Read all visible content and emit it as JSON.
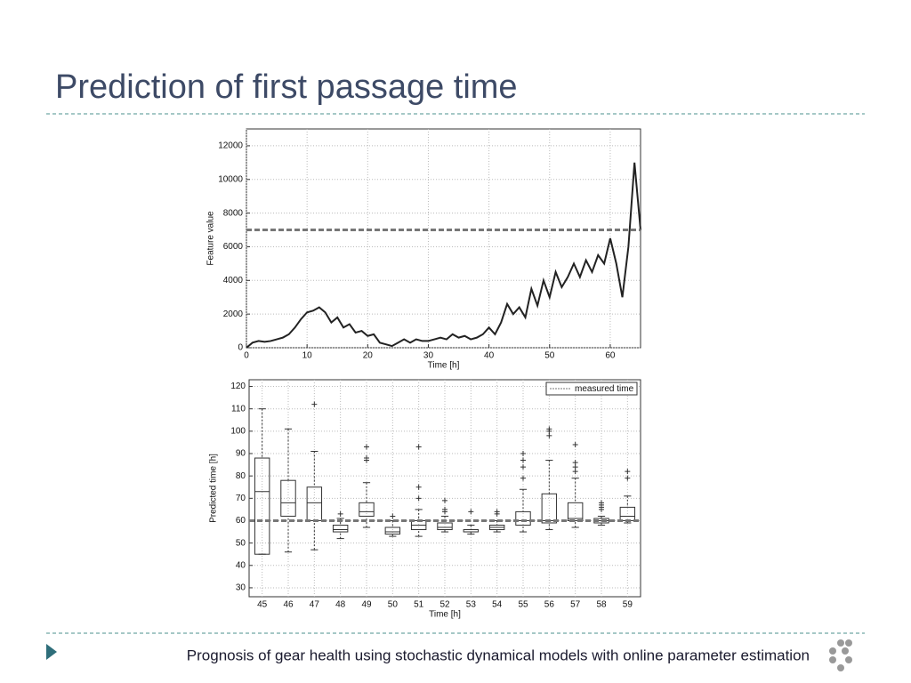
{
  "header": {
    "title": "Prediction of first passage time"
  },
  "footer": {
    "text": "Prognosis of gear health using stochastic dynamical models with online parameter estimation"
  },
  "chart_data": [
    {
      "type": "line",
      "xlabel": "Time [h]",
      "ylabel": "Feature value",
      "x": [
        0,
        1,
        2,
        3,
        4,
        5,
        6,
        7,
        8,
        9,
        10,
        11,
        12,
        13,
        14,
        15,
        16,
        17,
        18,
        19,
        20,
        21,
        22,
        23,
        24,
        25,
        26,
        27,
        28,
        29,
        30,
        31,
        32,
        33,
        34,
        35,
        36,
        37,
        38,
        39,
        40,
        41,
        42,
        43,
        44,
        45,
        46,
        47,
        48,
        49,
        50,
        51,
        52,
        53,
        54,
        55,
        56,
        57,
        58,
        59,
        60,
        61,
        62,
        63,
        64,
        65
      ],
      "series": [
        {
          "color": "#222222",
          "values": [
            0,
            300,
            400,
            350,
            400,
            500,
            600,
            800,
            1200,
            1700,
            2100,
            2200,
            2400,
            2100,
            1500,
            1800,
            1200,
            1400,
            900,
            1000,
            700,
            800,
            300,
            200,
            100,
            300,
            500,
            300,
            500,
            400,
            400,
            500,
            600,
            500,
            800,
            600,
            700,
            500,
            600,
            800,
            1200,
            800,
            1500,
            2600,
            2000,
            2400,
            1800,
            3500,
            2500,
            4000,
            3000,
            4500,
            3600,
            4200,
            5000,
            4200,
            5200,
            4500,
            5500,
            5000,
            6500,
            5000,
            3000,
            6000,
            11000,
            7000
          ]
        }
      ],
      "xlim": [
        0,
        65
      ],
      "ylim": [
        0,
        13000
      ],
      "xticks": [
        0,
        10,
        20,
        30,
        40,
        50,
        60
      ],
      "yticks": [
        0,
        2000,
        4000,
        6000,
        8000,
        10000,
        12000
      ],
      "threshold": 7000,
      "grid": true
    },
    {
      "type": "box",
      "xlabel": "Time [h]",
      "ylabel": "Predicted time [h]",
      "categories": [
        "45",
        "46",
        "47",
        "48",
        "49",
        "50",
        "51",
        "52",
        "53",
        "54",
        "55",
        "56",
        "57",
        "58",
        "59"
      ],
      "boxes": [
        {
          "min": 45,
          "q1": 45,
          "median": 73,
          "q3": 88,
          "max": 110,
          "outliers": []
        },
        {
          "min": 46,
          "q1": 62,
          "median": 68,
          "q3": 78,
          "max": 101,
          "outliers": []
        },
        {
          "min": 47,
          "q1": 60,
          "median": 68,
          "q3": 75,
          "max": 91,
          "outliers": [
            112
          ]
        },
        {
          "min": 52,
          "q1": 55,
          "median": 56,
          "q3": 58,
          "max": 61,
          "outliers": [
            63
          ]
        },
        {
          "min": 57,
          "q1": 62,
          "median": 64,
          "q3": 68,
          "max": 77,
          "outliers": [
            87,
            88,
            93
          ]
        },
        {
          "min": 53,
          "q1": 54,
          "median": 55,
          "q3": 57,
          "max": 60,
          "outliers": [
            62
          ]
        },
        {
          "min": 53,
          "q1": 56,
          "median": 58,
          "q3": 60,
          "max": 65,
          "outliers": [
            70,
            75,
            93
          ]
        },
        {
          "min": 55,
          "q1": 56,
          "median": 57,
          "q3": 59,
          "max": 62,
          "outliers": [
            64,
            65,
            69
          ]
        },
        {
          "min": 54,
          "q1": 55,
          "median": 55,
          "q3": 56,
          "max": 58,
          "outliers": [
            64
          ]
        },
        {
          "min": 55,
          "q1": 56,
          "median": 57,
          "q3": 58,
          "max": 60,
          "outliers": [
            63,
            64
          ]
        },
        {
          "min": 55,
          "q1": 58,
          "median": 60,
          "q3": 64,
          "max": 74,
          "outliers": [
            79,
            84,
            87,
            90
          ]
        },
        {
          "min": 56,
          "q1": 59,
          "median": 60,
          "q3": 72,
          "max": 87,
          "outliers": [
            98,
            100,
            101
          ]
        },
        {
          "min": 57,
          "q1": 60,
          "median": 61,
          "q3": 68,
          "max": 79,
          "outliers": [
            82,
            84,
            86,
            94
          ]
        },
        {
          "min": 58,
          "q1": 59,
          "median": 60,
          "q3": 61,
          "max": 62,
          "outliers": [
            65,
            66,
            67,
            68
          ]
        },
        {
          "min": 59,
          "q1": 60,
          "median": 62,
          "q3": 66,
          "max": 71,
          "outliers": [
            79,
            82
          ]
        }
      ],
      "ylim": [
        26,
        123
      ],
      "yticks": [
        30,
        40,
        50,
        60,
        70,
        80,
        90,
        100,
        110,
        120
      ],
      "reference": {
        "name": "measured time",
        "value": 60
      },
      "legend": "upper right",
      "grid": true
    }
  ]
}
